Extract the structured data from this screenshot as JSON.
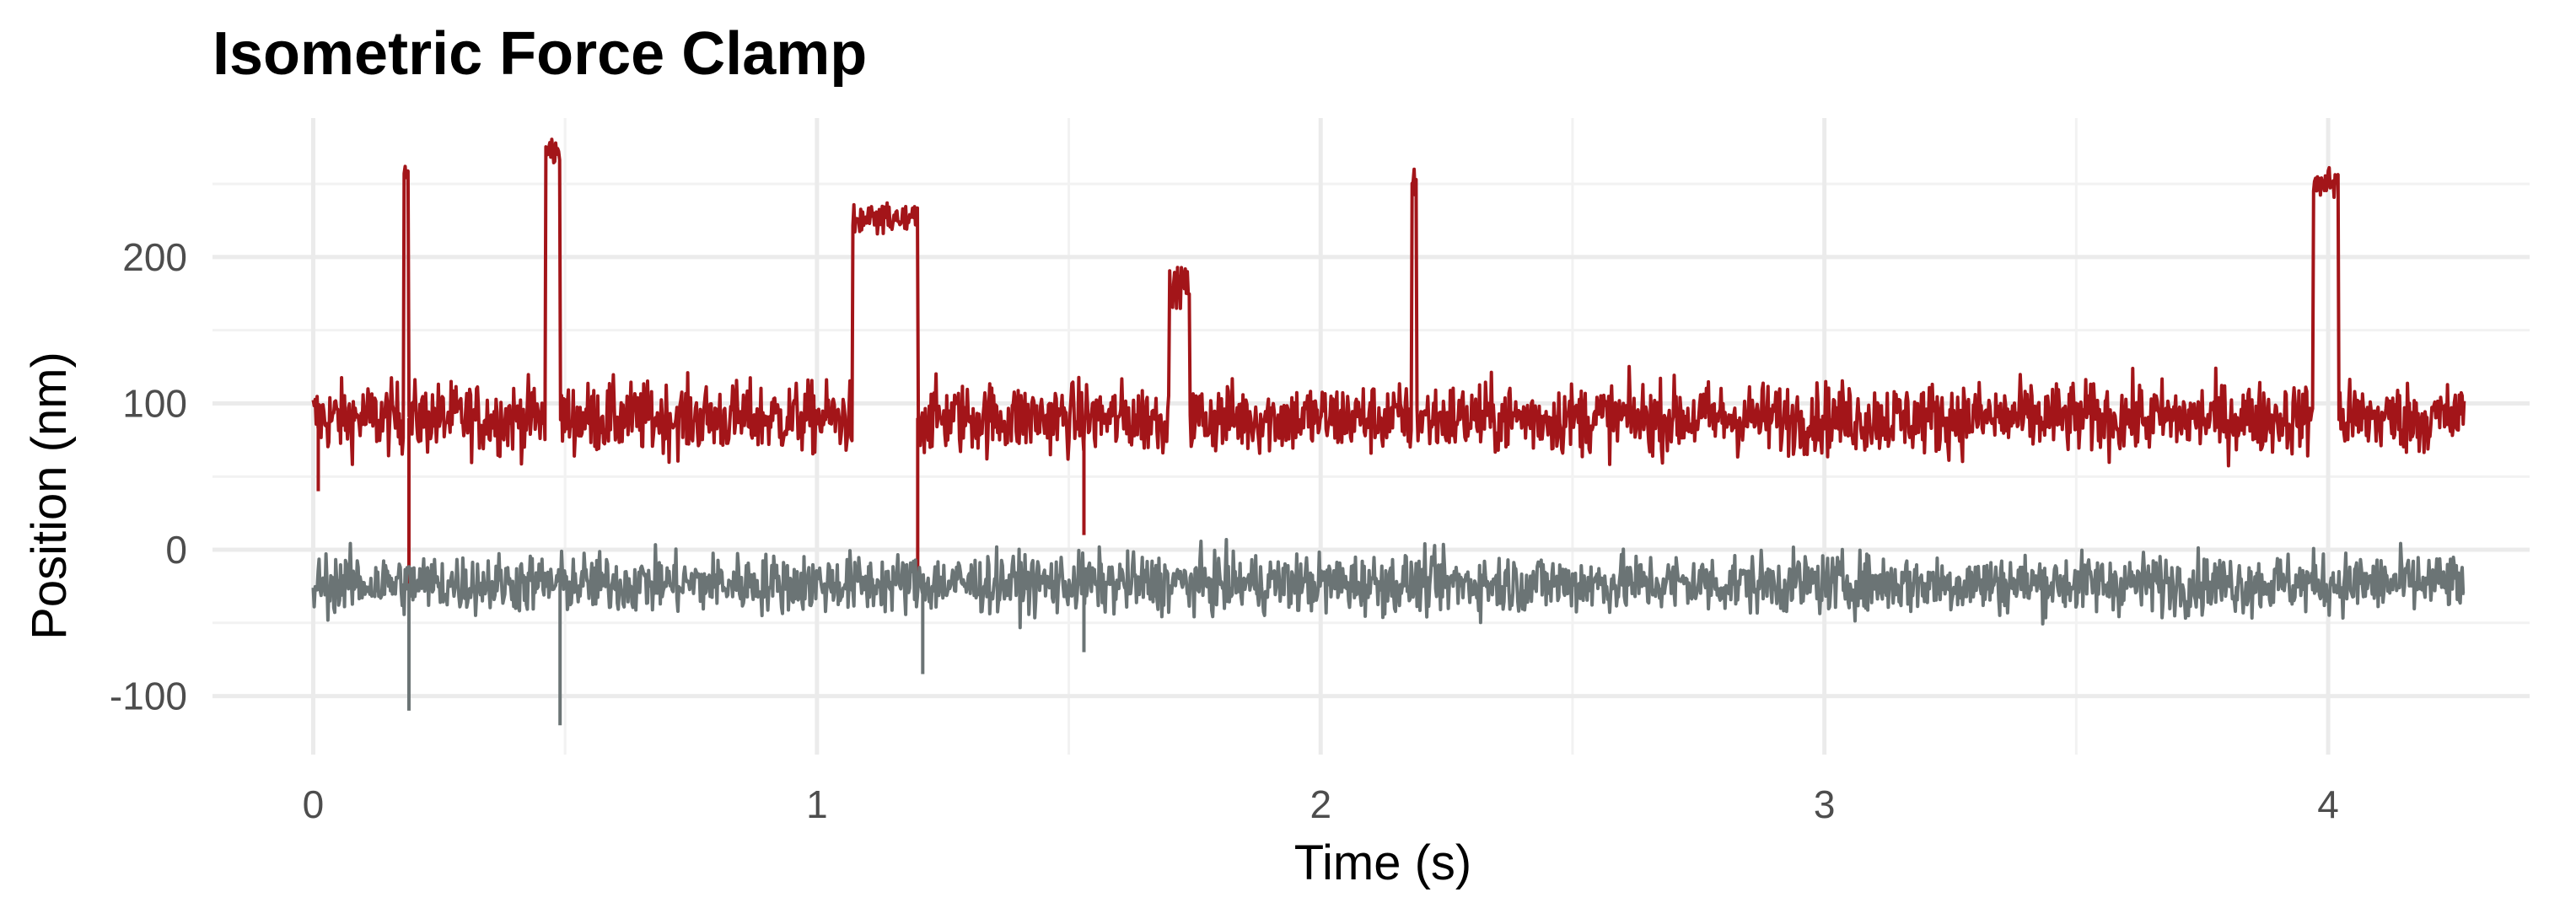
{
  "chart_data": {
    "type": "line",
    "title": "Isometric Force Clamp",
    "xlabel": "Time (s)",
    "ylabel": "Position (nm)",
    "xlim": [
      -0.2,
      4.4
    ],
    "ylim": [
      -140,
      295
    ],
    "x_ticks": [
      0,
      1,
      2,
      3,
      4
    ],
    "x_tick_labels": [
      "0",
      "1",
      "2",
      "3",
      "4"
    ],
    "y_ticks": [
      -100,
      0,
      100,
      200
    ],
    "y_tick_labels": [
      "-100",
      "0",
      "100",
      "200"
    ],
    "grid": true,
    "legend": "none",
    "x_range": [
      0,
      4.27
    ],
    "series": [
      {
        "color": "#a31519",
        "baseline": 90,
        "noise": 12,
        "events": [
          {
            "start": 0.18,
            "end": 0.19,
            "level": 265
          },
          {
            "start": 0.46,
            "end": 0.49,
            "level": 272
          },
          {
            "start": 1.07,
            "end": 1.2,
            "level": 225
          },
          {
            "start": 1.7,
            "end": 1.74,
            "level": 180
          },
          {
            "start": 2.18,
            "end": 2.19,
            "level": 250
          },
          {
            "start": 3.97,
            "end": 4.02,
            "level": 250
          }
        ],
        "spikes": [
          {
            "x": 0.19,
            "value": -40
          },
          {
            "x": 1.2,
            "value": -25
          },
          {
            "x": 1.53,
            "value": 10
          },
          {
            "x": 0.01,
            "value": 40
          }
        ]
      },
      {
        "color": "#6b7475",
        "baseline": -23,
        "noise": 10,
        "events": [],
        "spikes": [
          {
            "x": 0.19,
            "value": -110
          },
          {
            "x": 0.49,
            "value": -120
          },
          {
            "x": 1.21,
            "value": -85
          },
          {
            "x": 1.53,
            "value": -70
          }
        ]
      }
    ]
  }
}
